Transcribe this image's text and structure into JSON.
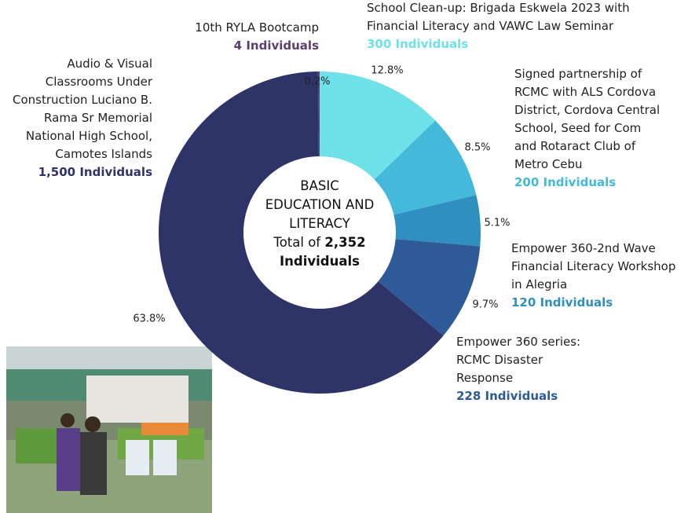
{
  "chart_data": {
    "type": "donut",
    "center_title": "BASIC EDUCATION AND LITERACY",
    "total_prefix": "Total of",
    "total_label": "2,352",
    "total_suffix": "Individuals",
    "categories": [
      "School Clean-up: Brigada Eskwela 2023 with Financial Literacy and VAWC Law Seminar",
      "Signed partnership of RCMC with ALS Cordova District, Cordova Central School, Seed for Com and Rotaract Club of Metro Cebu",
      "Empower 360-2nd Wave Financial Literacy Workshop in Alegria",
      "Empower 360 series: RCMC Disaster Response",
      "Audio & Visual Classrooms Under Construction Luciano B. Rama Sr Memorial National High School, Camotes Islands",
      "10th RYLA Bootcamp"
    ],
    "values": [
      300,
      200,
      120,
      228,
      1500,
      4
    ],
    "value_labels": [
      "300 Individuals",
      "200 Individuals",
      "120 Individuals",
      "228 Individuals",
      "1,500 Individuals",
      "4 Individuals"
    ],
    "percentage_labels": [
      "12.8%",
      "8.5%",
      "5.1%",
      "9.7%",
      "63.8%",
      "0.2%"
    ],
    "colors": [
      "#6fe1e9",
      "#44b9d9",
      "#2f8fc1",
      "#2e5b97",
      "#2e3468",
      "#5b3d70"
    ]
  }
}
